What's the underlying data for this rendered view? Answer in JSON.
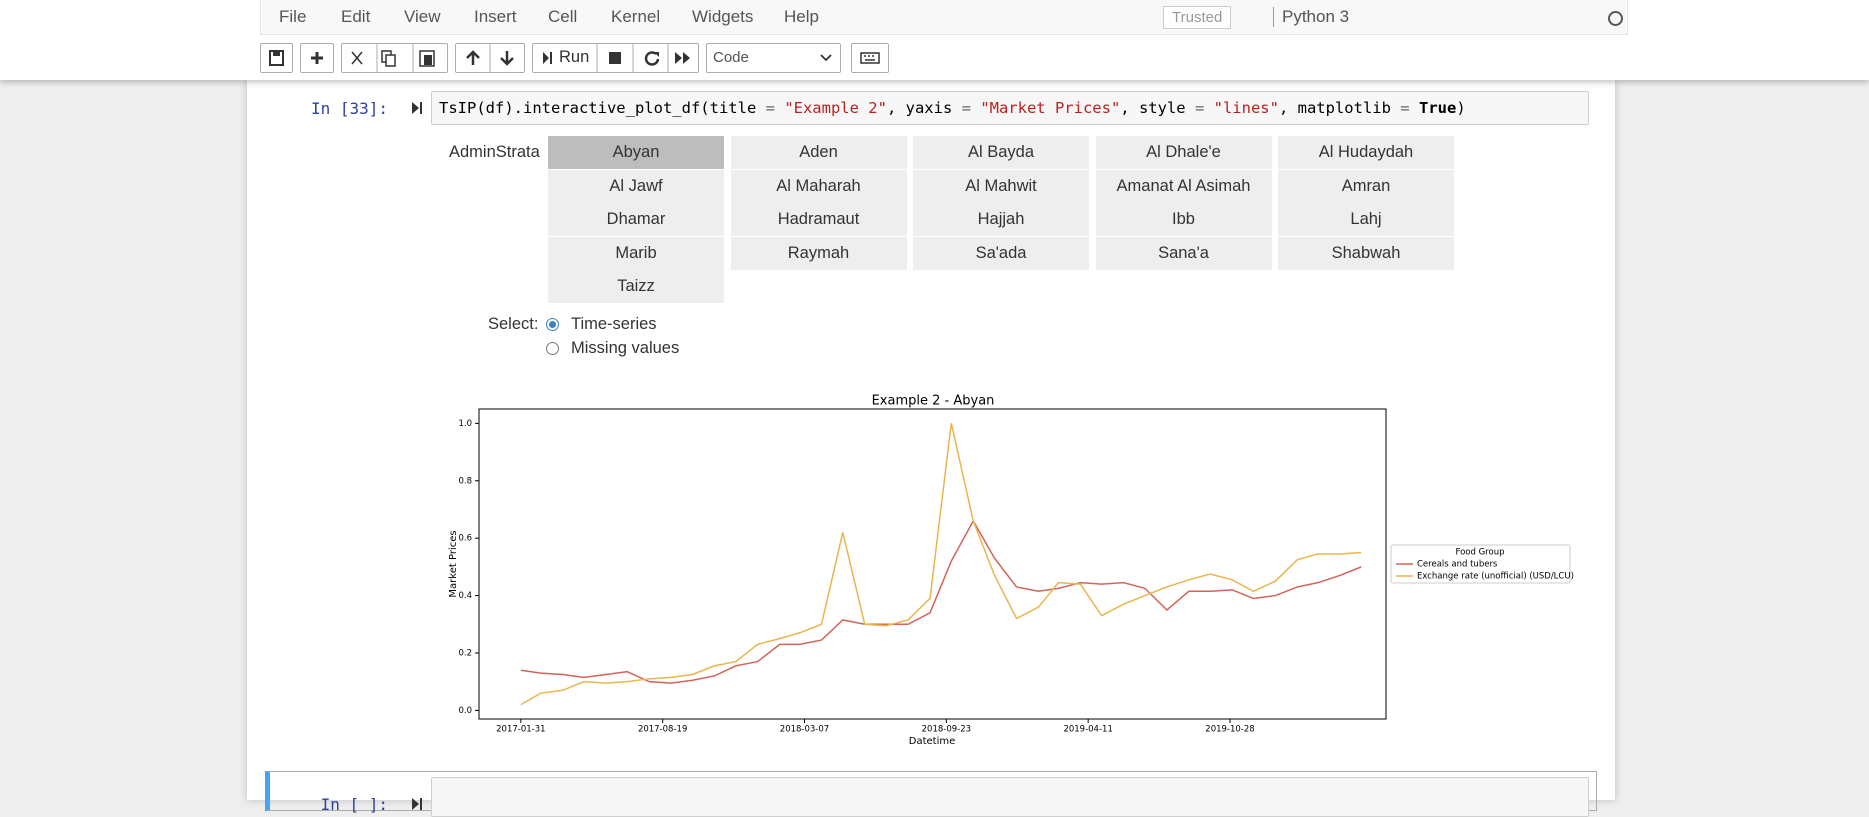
{
  "menu": [
    "File",
    "Edit",
    "View",
    "Insert",
    "Cell",
    "Kernel",
    "Widgets",
    "Help"
  ],
  "trusted": "Trusted",
  "kernel": "Python 3",
  "toolbar": {
    "run": "Run",
    "cell_type": "Code"
  },
  "cells": [
    {
      "prompt": "In [33]:",
      "code": "TsIP(df).interactive_plot_df(title = \"Example 2\", yaxis = \"Market Prices\", style = \"lines\", matplotlib = True)"
    },
    {
      "prompt": "In [ ]:",
      "code": ""
    }
  ],
  "widget": {
    "label": "AdminStrata",
    "options": [
      "Abyan",
      "Aden",
      "Al Bayda",
      "Al Dhale'e",
      "Al Hudaydah",
      "Al Jawf",
      "Al Maharah",
      "Al Mahwit",
      "Amanat Al Asimah",
      "Amran",
      "Dhamar",
      "Hadramaut",
      "Hajjah",
      "Ibb",
      "Lahj",
      "Marib",
      "Raymah",
      "Sa'ada",
      "Sana'a",
      "Shabwah",
      "Taizz"
    ],
    "selected": 0
  },
  "radio": {
    "label": "Select:",
    "options": [
      "Time-series",
      "Missing values"
    ],
    "selected": 0
  },
  "chart_data": {
    "type": "line",
    "title": "Example 2 - Abyan",
    "x_label": "Datetime",
    "y_label": "Market Prices",
    "x": [
      "2017-01-31",
      "2017-02-28",
      "2017-03-31",
      "2017-04-30",
      "2017-05-31",
      "2017-06-30",
      "2017-07-31",
      "2017-08-31",
      "2017-09-30",
      "2017-10-31",
      "2017-11-30",
      "2017-12-31",
      "2018-01-31",
      "2018-02-28",
      "2018-03-31",
      "2018-04-30",
      "2018-05-31",
      "2018-06-30",
      "2018-07-31",
      "2018-08-31",
      "2018-09-30",
      "2018-10-31",
      "2018-11-30",
      "2018-12-31",
      "2019-01-31",
      "2019-02-28",
      "2019-03-31",
      "2019-04-30",
      "2019-05-31",
      "2019-06-30",
      "2019-07-31",
      "2019-08-31",
      "2019-09-30",
      "2019-10-31",
      "2019-11-30",
      "2019-12-31",
      "2020-01-31",
      "2020-02-29",
      "2020-03-31",
      "2020-04-30"
    ],
    "series": [
      {
        "name": "Cereals and tubers",
        "color": "#d2655a",
        "values": [
          0.14,
          0.13,
          0.125,
          0.115,
          0.125,
          0.135,
          0.1,
          0.095,
          0.105,
          0.12,
          0.155,
          0.17,
          0.23,
          0.23,
          0.245,
          0.315,
          0.3,
          0.3,
          0.3,
          0.34,
          0.52,
          0.66,
          0.53,
          0.43,
          0.415,
          0.425,
          0.445,
          0.44,
          0.445,
          0.425,
          0.35,
          0.415,
          0.415,
          0.42,
          0.39,
          0.4,
          0.43,
          0.445,
          0.47,
          0.5
        ]
      },
      {
        "name": "Exchange rate (unofficial) (USD/LCU)",
        "color": "#e8b54f",
        "values": [
          0.02,
          0.06,
          0.07,
          0.1,
          0.095,
          0.1,
          0.11,
          0.115,
          0.125,
          0.155,
          0.17,
          0.23,
          0.25,
          0.27,
          0.3,
          0.62,
          0.3,
          0.295,
          0.315,
          0.39,
          1.0,
          0.66,
          0.47,
          0.32,
          0.36,
          0.445,
          0.44,
          0.33,
          0.37,
          0.4,
          0.43,
          0.455,
          0.475,
          0.455,
          0.415,
          0.45,
          0.525,
          0.545,
          0.545,
          0.55
        ]
      }
    ],
    "legend_title": "Food Group",
    "legend": "outside right",
    "xlim": [
      "2016-12-03",
      "2020-06-04"
    ],
    "xticks": [
      "2017-01-31",
      "2017-08-19",
      "2018-03-07",
      "2018-09-23",
      "2019-04-11",
      "2019-10-28"
    ],
    "ylim": [
      -0.03,
      1.05
    ],
    "yticks": [
      {
        "value": 0,
        "label": "0.0"
      },
      0.2,
      0.4,
      0.6,
      0.8,
      {
        "value": 1,
        "label": "1.0"
      }
    ]
  }
}
